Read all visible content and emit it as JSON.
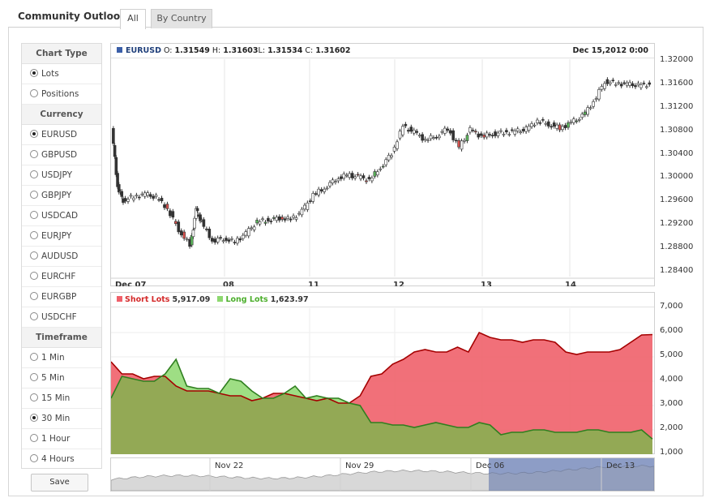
{
  "app": {
    "title": "Community Outlook"
  },
  "tabs": [
    {
      "label": "All",
      "active": true
    },
    {
      "label": "By Country",
      "active": false
    }
  ],
  "sidebar": {
    "chart_type": {
      "header": "Chart Type",
      "options": [
        {
          "label": "Lots",
          "selected": true
        },
        {
          "label": "Positions",
          "selected": false
        }
      ]
    },
    "currency": {
      "header": "Currency",
      "options": [
        {
          "label": "EURUSD",
          "selected": true
        },
        {
          "label": "GBPUSD",
          "selected": false
        },
        {
          "label": "USDJPY",
          "selected": false
        },
        {
          "label": "GBPJPY",
          "selected": false
        },
        {
          "label": "USDCAD",
          "selected": false
        },
        {
          "label": "EURJPY",
          "selected": false
        },
        {
          "label": "AUDUSD",
          "selected": false
        },
        {
          "label": "EURCHF",
          "selected": false
        },
        {
          "label": "EURGBP",
          "selected": false
        },
        {
          "label": "USDCHF",
          "selected": false
        }
      ]
    },
    "timeframe": {
      "header": "Timeframe",
      "options": [
        {
          "label": "1 Min",
          "selected": false
        },
        {
          "label": "5 Min",
          "selected": false
        },
        {
          "label": "15 Min",
          "selected": false
        },
        {
          "label": "30 Min",
          "selected": true
        },
        {
          "label": "1 Hour",
          "selected": false
        },
        {
          "label": "4 Hours",
          "selected": false
        }
      ]
    },
    "save_label": "Save"
  },
  "price_chart": {
    "symbol": "EURUSD",
    "ohlc_label": {
      "o_label": "O:",
      "o": "1.31549",
      "h_label": "H:",
      "h": "1.31603",
      "l_label": "L:",
      "l": "1.31534",
      "c_label": "C:",
      "c": "1.31602"
    },
    "date_stamp": "Dec 15,2012 0:00",
    "y_ticks": [
      "1.32000",
      "1.31600",
      "1.31200",
      "1.30800",
      "1.30400",
      "1.30000",
      "1.29600",
      "1.29200",
      "1.28800",
      "1.28400"
    ],
    "x_ticks": [
      "Dec  07",
      "08",
      "11",
      "12",
      "13",
      "14"
    ]
  },
  "lots_chart": {
    "short_label": "Short Lots",
    "short_value": "5,917.09",
    "long_label": "Long Lots",
    "long_value": "1,623.97",
    "short_color": "#f0606a",
    "long_color": "#8dd86f",
    "y_ticks": [
      "7,000",
      "6,000",
      "5,000",
      "4,000",
      "3,000",
      "2,000",
      "1,000"
    ]
  },
  "navigator": {
    "labels": [
      "Nov 22",
      "Nov 29",
      "Dec 06",
      "Dec 13"
    ]
  },
  "chart_data": [
    {
      "type": "line",
      "xlabel": "",
      "ylabel": "",
      "ylim": [
        1.284,
        1.32
      ],
      "x_ticks": [
        "Dec 07",
        "08",
        "11",
        "12",
        "13",
        "14"
      ],
      "x": [
        0,
        0.25,
        0.5,
        1,
        1.5,
        2,
        2.5,
        3,
        3.5,
        3.75,
        4,
        4.5,
        5,
        5.5,
        6,
        6.5,
        7,
        7.5,
        8,
        8.5,
        9,
        9.5,
        10,
        10.5,
        11,
        11.5,
        12,
        12.5,
        13,
        13.5,
        14,
        14.5,
        15,
        15.5,
        16,
        16.5,
        17,
        17.5,
        18,
        18.5,
        19,
        19.5,
        20,
        20.5,
        21,
        21.5,
        22,
        22.5,
        23,
        23.5,
        24
      ],
      "y": [
        1.3082,
        1.2985,
        1.2962,
        1.2968,
        1.2972,
        1.2967,
        1.2948,
        1.2912,
        1.2885,
        1.2945,
        1.2925,
        1.2893,
        1.2897,
        1.2891,
        1.2905,
        1.2925,
        1.2928,
        1.2932,
        1.2929,
        1.2943,
        1.2971,
        1.2983,
        1.2998,
        1.3005,
        1.3002,
        1.2996,
        1.3018,
        1.3042,
        1.3088,
        1.3078,
        1.3065,
        1.3072,
        1.3085,
        1.3052,
        1.3082,
        1.3071,
        1.3075,
        1.3078,
        1.3079,
        1.3083,
        1.3098,
        1.3092,
        1.3085,
        1.3094,
        1.3105,
        1.313,
        1.3165,
        1.3162,
        1.316,
        1.3158,
        1.316
      ]
    },
    {
      "type": "area",
      "ylim": [
        1000,
        7000
      ],
      "series": [
        {
          "name": "Short Lots",
          "values": [
            4800,
            4300,
            4300,
            4100,
            4200,
            4200,
            3800,
            3600,
            3600,
            3600,
            3500,
            3400,
            3400,
            3200,
            3300,
            3500,
            3500,
            3400,
            3300,
            3200,
            3300,
            3100,
            3100,
            3400,
            4200,
            4300,
            4700,
            4900,
            5200,
            5300,
            5200,
            5200,
            5400,
            5200,
            6000,
            5800,
            5700,
            5700,
            5600,
            5700,
            5700,
            5600,
            5200,
            5100,
            5200,
            5200,
            5200,
            5300,
            5600,
            5900,
            5917
          ]
        },
        {
          "name": "Long Lots",
          "values": [
            3300,
            4200,
            4100,
            4000,
            4000,
            4300,
            4900,
            3800,
            3700,
            3700,
            3500,
            4100,
            4000,
            3600,
            3300,
            3300,
            3500,
            3800,
            3300,
            3400,
            3300,
            3300,
            3100,
            3000,
            2300,
            2300,
            2200,
            2200,
            2100,
            2200,
            2300,
            2200,
            2100,
            2100,
            2300,
            2200,
            1800,
            1900,
            1900,
            2000,
            2000,
            1900,
            1900,
            1900,
            2000,
            2000,
            1900,
            1900,
            1900,
            2000,
            1624
          ]
        }
      ]
    }
  ]
}
